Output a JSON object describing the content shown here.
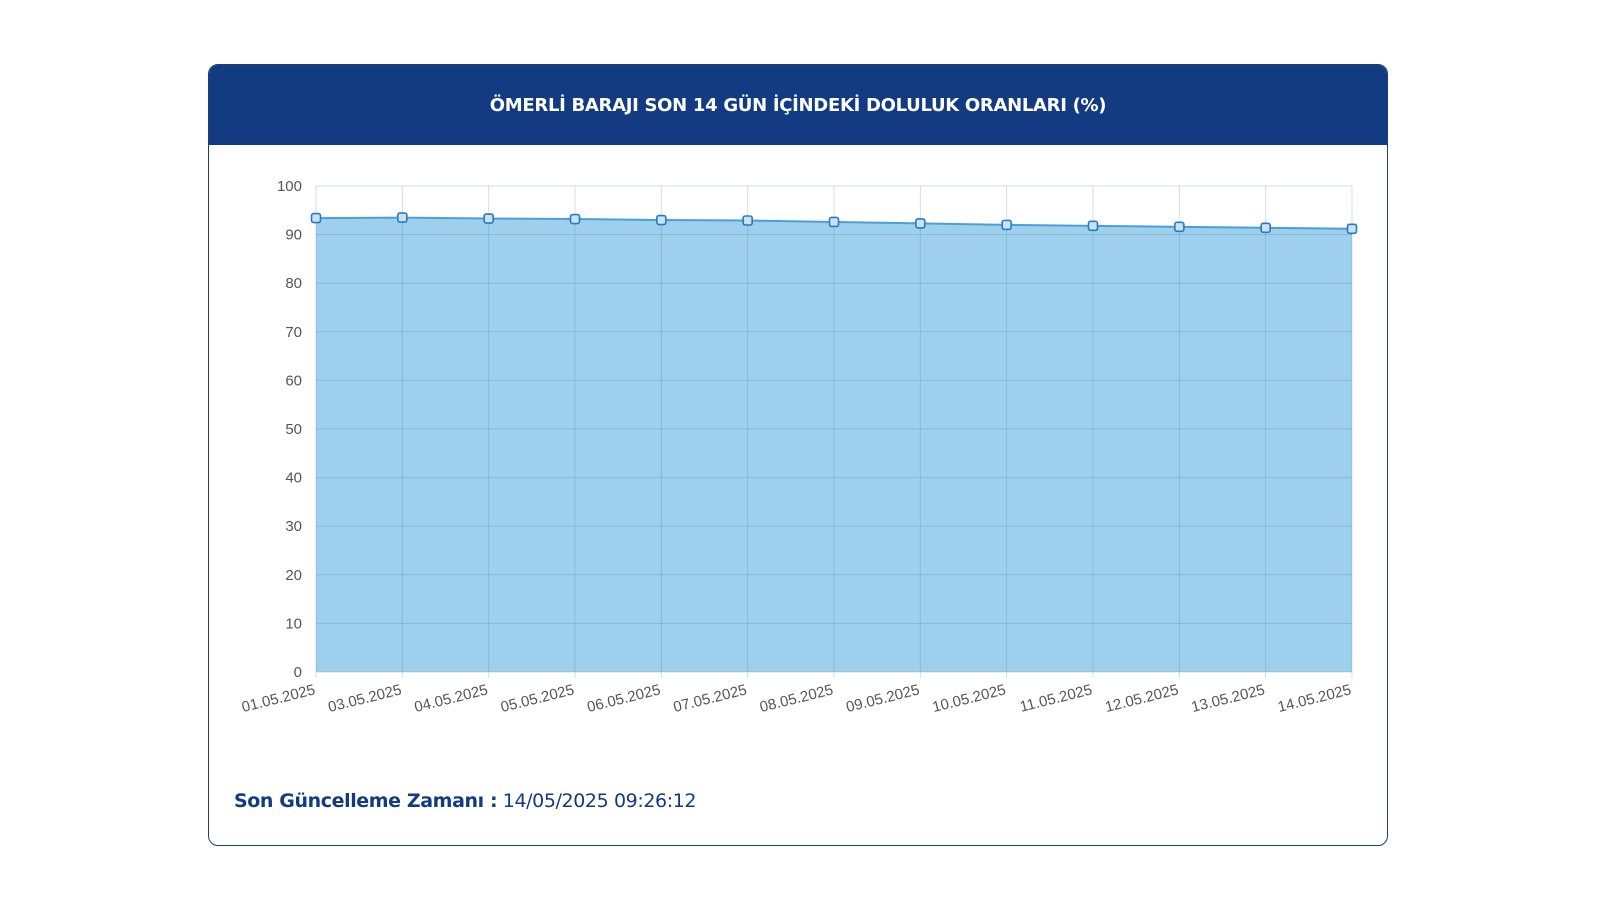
{
  "card": {
    "title": "ÖMERLİ BARAJI SON 14 GÜN İÇİNDEKİ DOLULUK ORANLARI (%)"
  },
  "footer": {
    "label": "Son Güncelleme Zamanı :",
    "value": "14/05/2025 09:26:12"
  },
  "colors": {
    "header_bg": "#123b82",
    "area_fill": "#9ed0ee",
    "line": "#4a9fd8",
    "point": "#2b79be"
  },
  "chart_data": {
    "type": "area",
    "title": "ÖMERLİ BARAJI SON 14 GÜN İÇİNDEKİ DOLULUK ORANLARI (%)",
    "xlabel": "",
    "ylabel": "",
    "categories": [
      "01.05.2025",
      "03.05.2025",
      "04.05.2025",
      "05.05.2025",
      "06.05.2025",
      "07.05.2025",
      "08.05.2025",
      "09.05.2025",
      "10.05.2025",
      "11.05.2025",
      "12.05.2025",
      "13.05.2025",
      "14.05.2025"
    ],
    "values": [
      93.4,
      93.5,
      93.3,
      93.2,
      93.0,
      92.9,
      92.6,
      92.3,
      92.0,
      91.8,
      91.6,
      91.4,
      91.2
    ],
    "ylim": [
      0,
      100
    ],
    "yticks": [
      0,
      10,
      20,
      30,
      40,
      50,
      60,
      70,
      80,
      90,
      100
    ],
    "grid": true,
    "legend": "none"
  }
}
